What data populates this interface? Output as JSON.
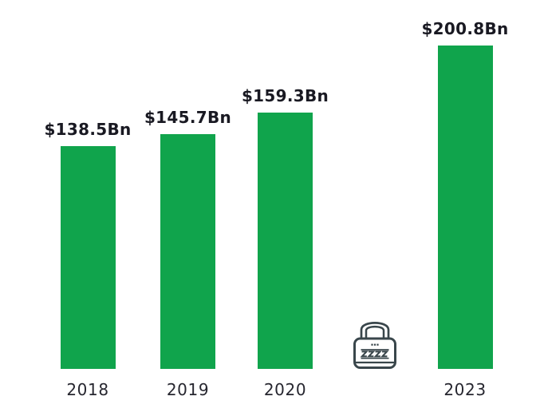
{
  "chart_data": {
    "type": "bar",
    "title": "",
    "xlabel": "",
    "ylabel": "",
    "value_format": "$<value>Bn",
    "categories": [
      "2018",
      "2019",
      "2020",
      "",
      "2023"
    ],
    "points": [
      {
        "category": "2018",
        "value": 138.5,
        "data_label": "$138.5Bn",
        "locked": false
      },
      {
        "category": "2019",
        "value": 145.7,
        "data_label": "$145.7Bn",
        "locked": false
      },
      {
        "category": "2020",
        "value": 159.3,
        "data_label": "$159.3Bn",
        "locked": false
      },
      {
        "category": "",
        "value": null,
        "data_label": "",
        "locked": true
      },
      {
        "category": "2023",
        "value": 200.8,
        "data_label": "$200.8Bn",
        "locked": false
      }
    ],
    "ylim": [
      0,
      210
    ],
    "grid": false,
    "legend": false,
    "colors": {
      "bar": "#10a44c",
      "data_label_text": "#191922",
      "axis_label_text": "#26262f",
      "lock_icon_stroke": "#39464b",
      "background": "#ffffff"
    }
  }
}
